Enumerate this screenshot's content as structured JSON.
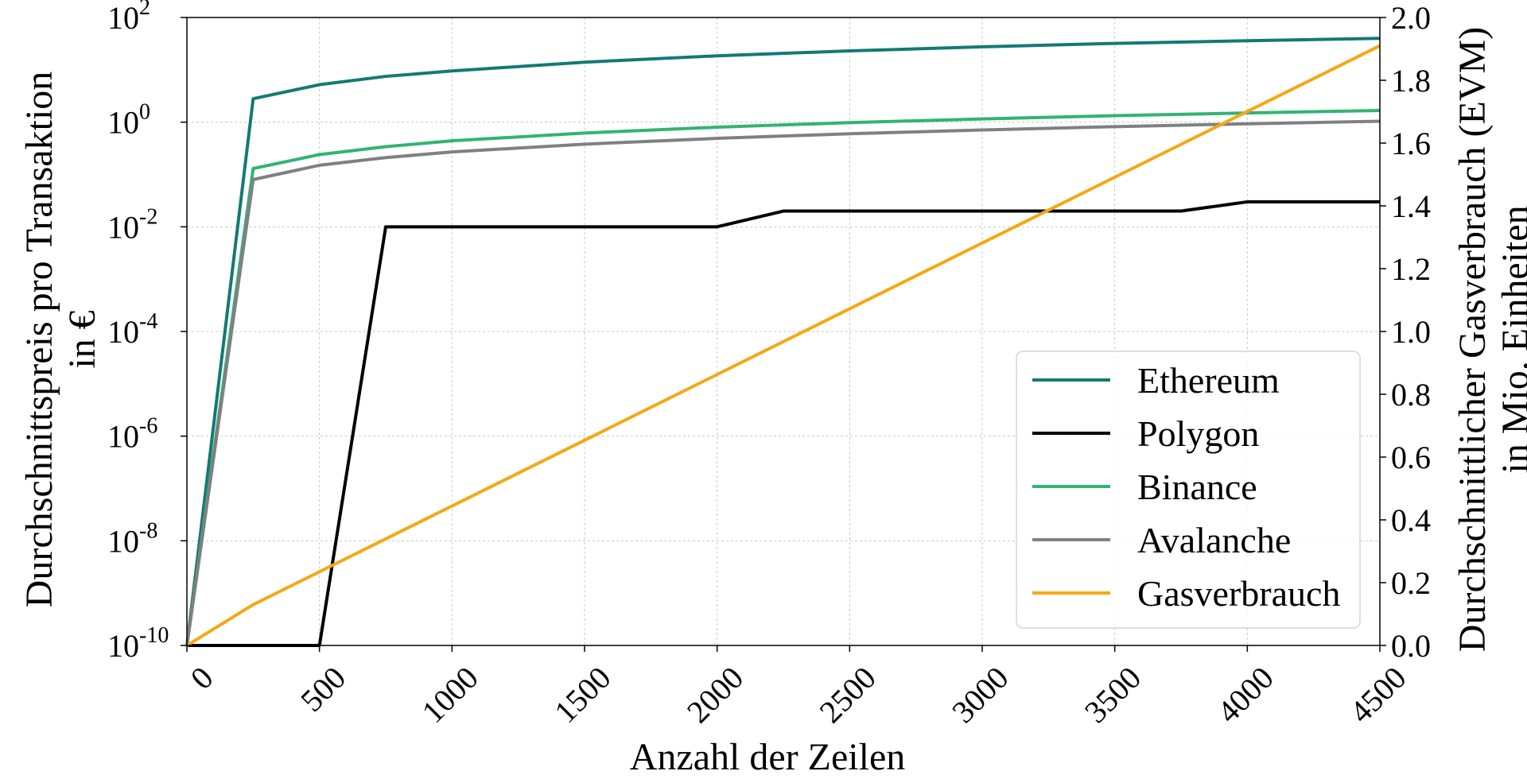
{
  "chart_data": {
    "type": "line",
    "xlabel": "Anzahl der Zeilen",
    "ylabel_left": [
      "Durchschnittspreis pro Transaktion",
      "in €"
    ],
    "ylabel_right": [
      "Durchschnittlicher Gasverbrauch (EVM)",
      "in Mio. Einheiten"
    ],
    "xlim": [
      0,
      4500
    ],
    "xticks": [
      0,
      500,
      1000,
      1500,
      2000,
      2500,
      3000,
      3500,
      4000,
      4500
    ],
    "ylim_left_log10": [
      -10,
      2
    ],
    "yticks_left_exp": [
      -10,
      -8,
      -6,
      -4,
      -2,
      0,
      2
    ],
    "ylim_right": [
      0.0,
      2.0
    ],
    "yticks_right": [
      "0.0",
      "0.2",
      "0.4",
      "0.6",
      "0.8",
      "1.0",
      "1.2",
      "1.4",
      "1.6",
      "1.8",
      "2.0"
    ],
    "grid": true,
    "legend_position": "lower-right",
    "series": [
      {
        "name": "Ethereum",
        "axis": "left",
        "color": "#137a73",
        "x": [
          0,
          250,
          500,
          750,
          1000,
          1500,
          2000,
          2500,
          3000,
          3500,
          4000,
          4500
        ],
        "y": [
          1e-10,
          2.8,
          5.2,
          7.5,
          9.5,
          14,
          18.5,
          23,
          27.5,
          32,
          36,
          40
        ]
      },
      {
        "name": "Polygon",
        "axis": "left",
        "color": "#000000",
        "x": [
          0,
          250,
          500,
          750,
          1000,
          1500,
          2000,
          2250,
          2500,
          3000,
          3500,
          3750,
          4000,
          4250,
          4500
        ],
        "y": [
          1e-10,
          1e-10,
          1e-10,
          0.01,
          0.01,
          0.01,
          0.01,
          0.02,
          0.02,
          0.02,
          0.02,
          0.02,
          0.03,
          0.03,
          0.03
        ]
      },
      {
        "name": "Binance",
        "axis": "left",
        "color": "#32b374",
        "x": [
          0,
          250,
          500,
          750,
          1000,
          1500,
          2000,
          2500,
          3000,
          3500,
          4000,
          4500
        ],
        "y": [
          1e-10,
          0.13,
          0.24,
          0.34,
          0.44,
          0.62,
          0.8,
          0.98,
          1.15,
          1.33,
          1.5,
          1.67
        ]
      },
      {
        "name": "Avalanche",
        "axis": "left",
        "color": "#808080",
        "x": [
          0,
          250,
          500,
          750,
          1000,
          1500,
          2000,
          2500,
          3000,
          3500,
          4000,
          4500
        ],
        "y": [
          1e-10,
          0.08,
          0.15,
          0.21,
          0.27,
          0.38,
          0.49,
          0.6,
          0.71,
          0.82,
          0.93,
          1.04
        ]
      },
      {
        "name": "Gasverbrauch",
        "axis": "right",
        "color": "#f5a814",
        "x": [
          0,
          250,
          4500
        ],
        "y": [
          0.0,
          0.13,
          1.91
        ]
      }
    ]
  }
}
